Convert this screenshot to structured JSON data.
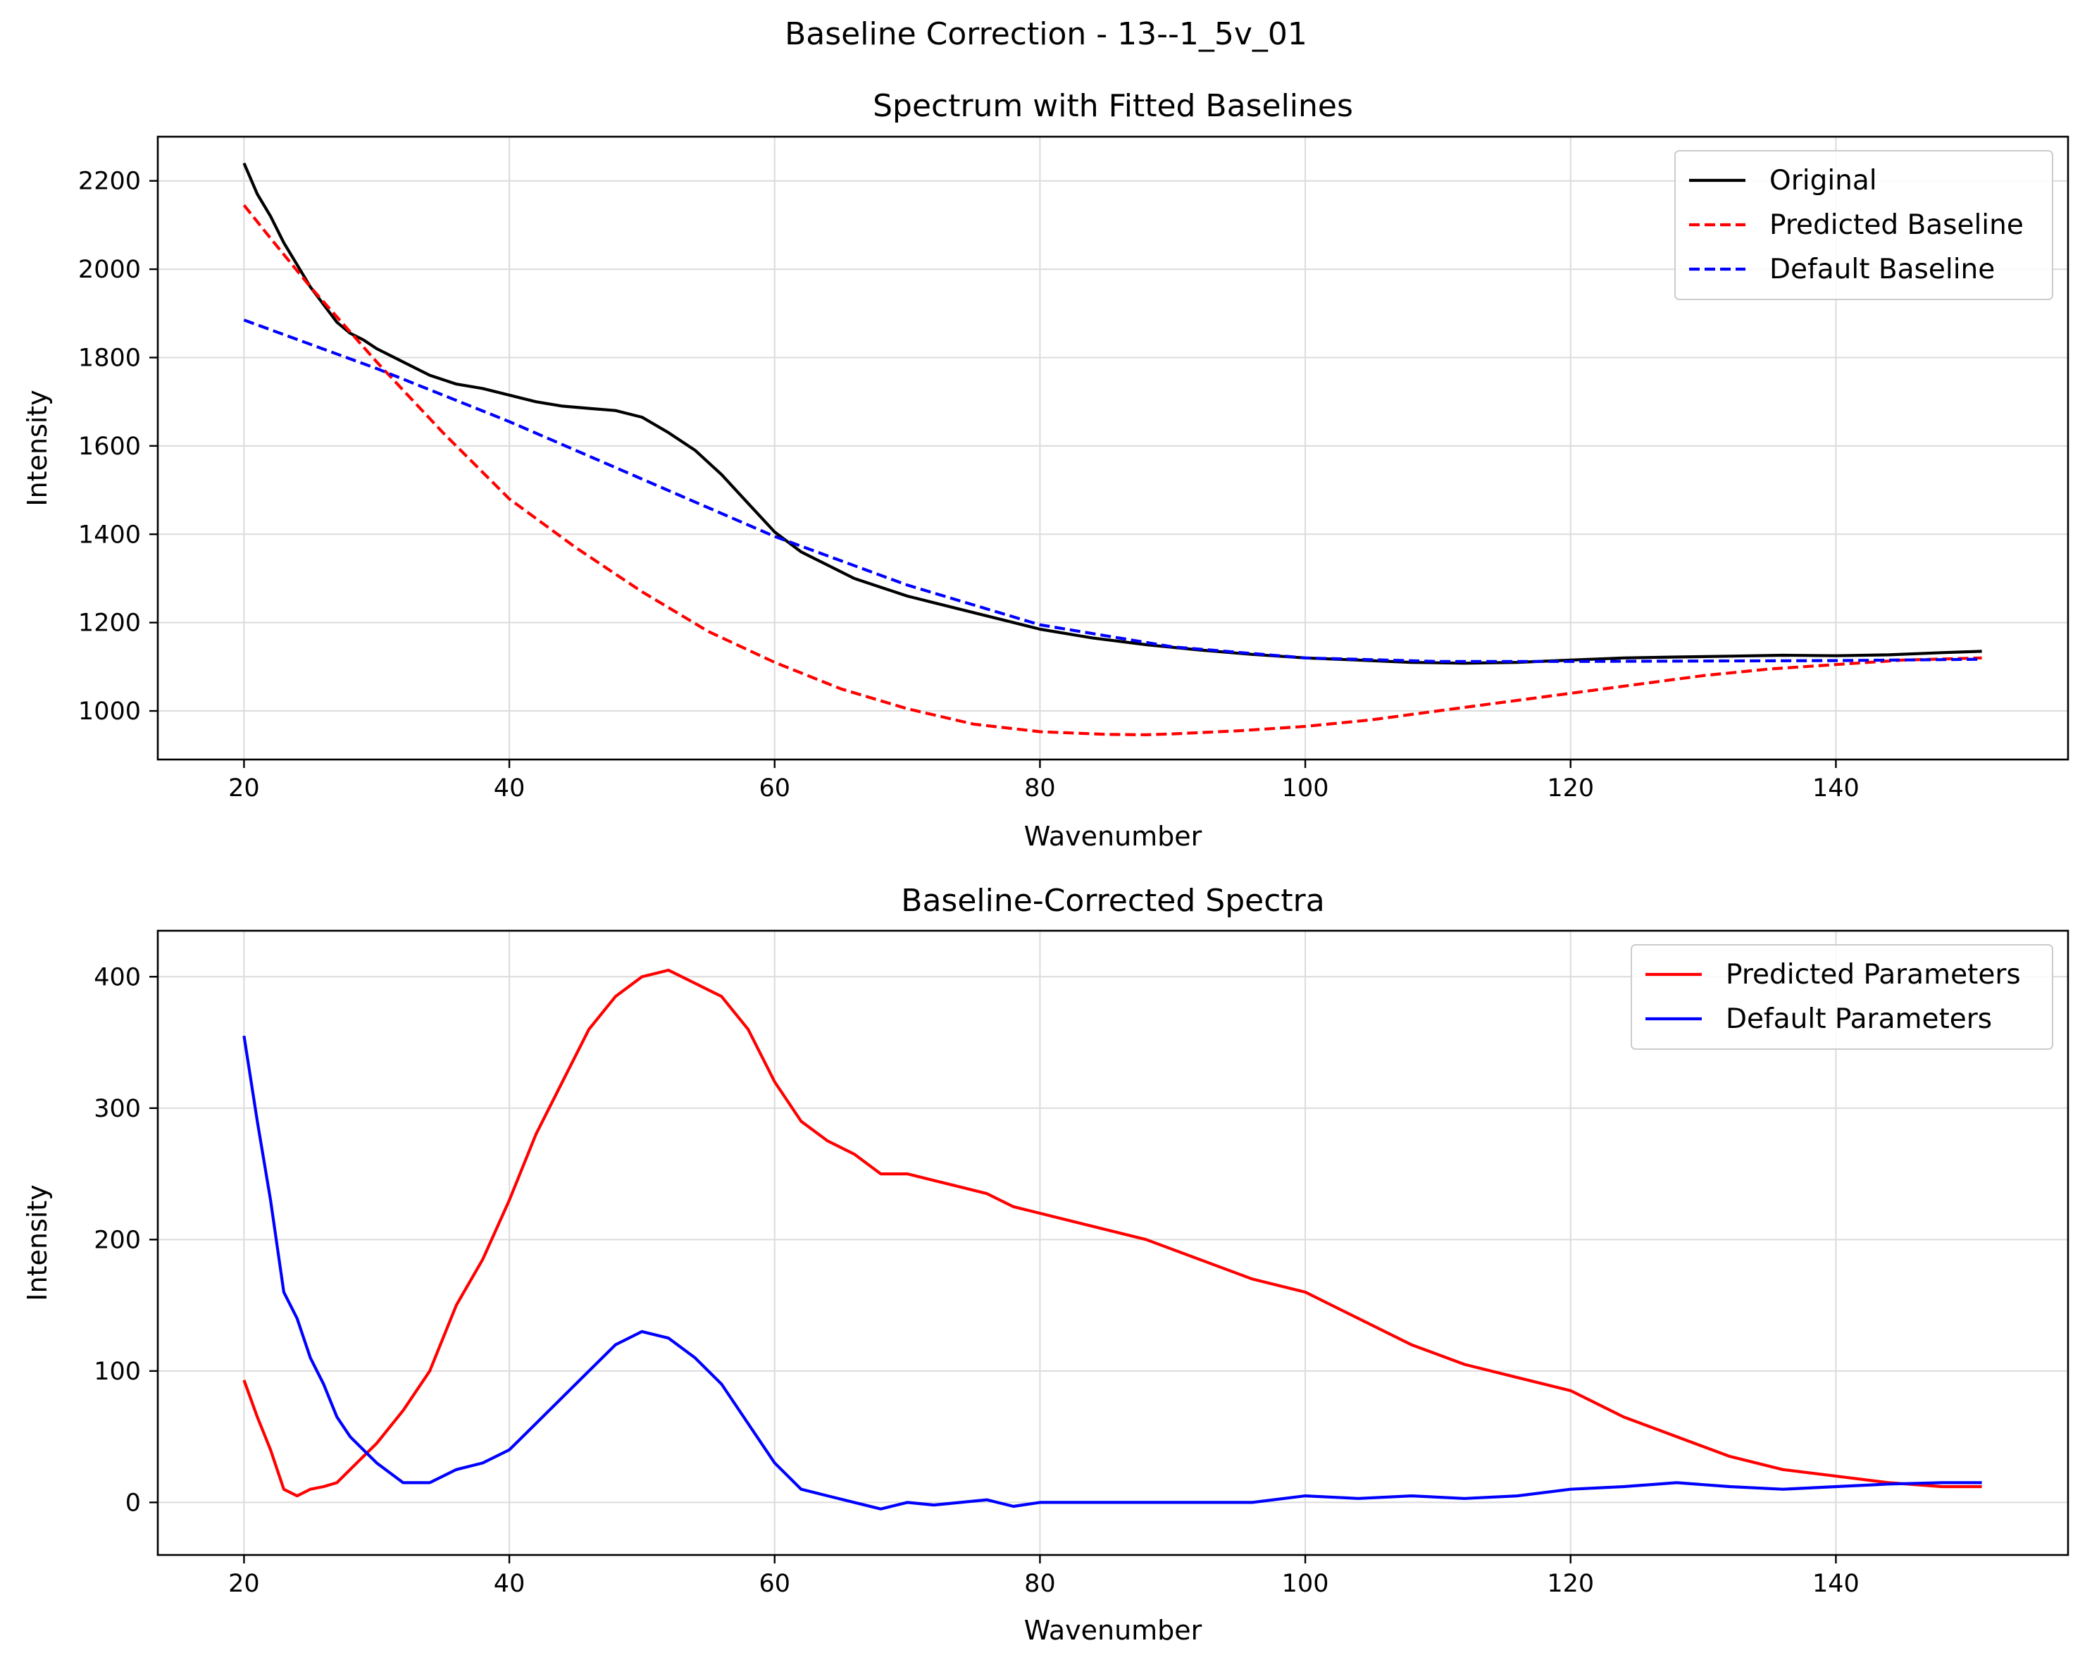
{
  "figure": {
    "suptitle": "Baseline Correction - 13--1_5v_01"
  },
  "chart_data": [
    {
      "type": "line",
      "title": "Spectrum with Fitted Baselines",
      "xlabel": "Wavenumber",
      "ylabel": "Intensity",
      "xlim": [
        13.5,
        157.5
      ],
      "ylim": [
        890,
        2300
      ],
      "xticks": [
        20,
        40,
        60,
        80,
        100,
        120,
        140
      ],
      "yticks": [
        1000,
        1200,
        1400,
        1600,
        1800,
        2000,
        2200
      ],
      "grid": true,
      "legend": "top-right",
      "series": [
        {
          "name": "Original",
          "color": "#000000",
          "style": "solid",
          "x": [
            20,
            21,
            22,
            23,
            24,
            25,
            26,
            27,
            28,
            29,
            30,
            32,
            34,
            36,
            38,
            40,
            42,
            44,
            46,
            48,
            50,
            52,
            54,
            56,
            58,
            60,
            62,
            64,
            66,
            68,
            70,
            72,
            74,
            76,
            78,
            80,
            84,
            88,
            92,
            96,
            100,
            104,
            108,
            112,
            116,
            120,
            124,
            128,
            132,
            136,
            140,
            144,
            148,
            151
          ],
          "y": [
            2240,
            2170,
            2120,
            2060,
            2010,
            1960,
            1920,
            1880,
            1855,
            1840,
            1820,
            1790,
            1760,
            1740,
            1730,
            1715,
            1700,
            1690,
            1685,
            1680,
            1665,
            1630,
            1590,
            1535,
            1470,
            1405,
            1360,
            1330,
            1300,
            1280,
            1260,
            1245,
            1230,
            1215,
            1200,
            1185,
            1165,
            1150,
            1138,
            1128,
            1120,
            1115,
            1110,
            1108,
            1110,
            1115,
            1120,
            1122,
            1124,
            1126,
            1125,
            1127,
            1132,
            1135
          ]
        },
        {
          "name": "Predicted Baseline",
          "color": "#ff0000",
          "style": "dashed",
          "x": [
            20,
            22,
            25,
            30,
            35,
            40,
            45,
            50,
            55,
            60,
            65,
            70,
            75,
            80,
            85,
            88,
            90,
            95,
            100,
            105,
            110,
            115,
            120,
            125,
            130,
            135,
            140,
            145,
            151
          ],
          "y": [
            2145,
            2070,
            1960,
            1790,
            1630,
            1480,
            1370,
            1270,
            1180,
            1110,
            1050,
            1005,
            970,
            953,
            947,
            946,
            948,
            955,
            965,
            980,
            1000,
            1020,
            1040,
            1060,
            1080,
            1095,
            1105,
            1115,
            1120
          ]
        },
        {
          "name": "Default Baseline",
          "color": "#0000ff",
          "style": "dashed",
          "x": [
            20,
            30,
            40,
            50,
            60,
            70,
            80,
            90,
            100,
            110,
            120,
            130,
            140,
            151
          ],
          "y": [
            1885,
            1775,
            1655,
            1525,
            1395,
            1285,
            1195,
            1145,
            1120,
            1112,
            1112,
            1113,
            1114,
            1117
          ]
        }
      ]
    },
    {
      "type": "line",
      "title": "Baseline-Corrected Spectra",
      "xlabel": "Wavenumber",
      "ylabel": "Intensity",
      "xlim": [
        13.5,
        157.5
      ],
      "ylim": [
        -40,
        435
      ],
      "xticks": [
        20,
        40,
        60,
        80,
        100,
        120,
        140
      ],
      "yticks": [
        0,
        100,
        200,
        300,
        400
      ],
      "grid": true,
      "legend": "top-right",
      "series": [
        {
          "name": "Predicted Parameters",
          "color": "#ff0000",
          "style": "solid",
          "x": [
            20,
            21,
            22,
            23,
            24,
            25,
            26,
            27,
            28,
            29,
            30,
            32,
            34,
            36,
            38,
            40,
            42,
            44,
            46,
            48,
            50,
            52,
            54,
            56,
            58,
            60,
            62,
            64,
            66,
            68,
            70,
            72,
            74,
            76,
            78,
            80,
            84,
            88,
            92,
            96,
            100,
            104,
            108,
            112,
            116,
            120,
            124,
            128,
            132,
            136,
            140,
            144,
            148,
            151
          ],
          "y": [
            93,
            65,
            40,
            10,
            5,
            10,
            12,
            15,
            25,
            35,
            45,
            70,
            100,
            150,
            185,
            230,
            280,
            320,
            360,
            385,
            400,
            405,
            395,
            385,
            360,
            320,
            290,
            275,
            265,
            250,
            250,
            245,
            240,
            235,
            225,
            220,
            210,
            200,
            185,
            170,
            160,
            140,
            120,
            105,
            95,
            85,
            65,
            50,
            35,
            25,
            20,
            15,
            12,
            12
          ]
        },
        {
          "name": "Default Parameters",
          "color": "#0000ff",
          "style": "solid",
          "x": [
            20,
            21,
            22,
            23,
            24,
            25,
            26,
            27,
            28,
            29,
            30,
            32,
            34,
            36,
            38,
            40,
            42,
            44,
            46,
            48,
            50,
            52,
            54,
            56,
            58,
            60,
            62,
            64,
            66,
            68,
            70,
            72,
            74,
            76,
            78,
            80,
            84,
            88,
            92,
            96,
            100,
            104,
            108,
            112,
            116,
            120,
            124,
            128,
            132,
            136,
            140,
            144,
            148,
            151
          ],
          "y": [
            355,
            290,
            230,
            160,
            140,
            110,
            90,
            65,
            50,
            40,
            30,
            15,
            15,
            25,
            30,
            40,
            60,
            80,
            100,
            120,
            130,
            125,
            110,
            90,
            60,
            30,
            10,
            5,
            0,
            -5,
            0,
            -2,
            0,
            2,
            -3,
            0,
            0,
            0,
            0,
            0,
            5,
            3,
            5,
            3,
            5,
            10,
            12,
            15,
            12,
            10,
            12,
            14,
            15,
            15
          ]
        }
      ]
    }
  ]
}
